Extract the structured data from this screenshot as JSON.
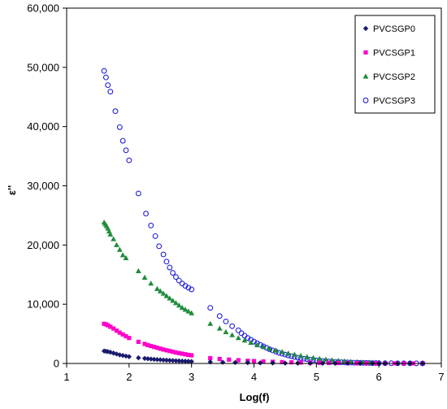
{
  "chart_data": {
    "type": "scatter",
    "title": "",
    "xlabel": "Log(f)",
    "ylabel": "ε''",
    "xlim": [
      1,
      7
    ],
    "ylim": [
      0,
      60000
    ],
    "xticks": [
      1,
      2,
      3,
      4,
      5,
      6,
      7
    ],
    "yticks": [
      0,
      10000,
      20000,
      30000,
      40000,
      50000,
      60000
    ],
    "xtick_labels": [
      "1",
      "2",
      "3",
      "4",
      "5",
      "6",
      "7"
    ],
    "ytick_labels": [
      "0",
      "10,000",
      "20,000",
      "30,000",
      "40,000",
      "50,000",
      "60,000"
    ],
    "grid": false,
    "legend_position": "top-right",
    "series": [
      {
        "name": "PVCSGP0",
        "marker": "diamond",
        "color": "#1a1a6e",
        "points": [
          [
            1.6,
            2100
          ],
          [
            1.63,
            2050
          ],
          [
            1.66,
            2000
          ],
          [
            1.7,
            1900
          ],
          [
            1.75,
            1750
          ],
          [
            1.8,
            1600
          ],
          [
            1.85,
            1450
          ],
          [
            1.9,
            1350
          ],
          [
            1.95,
            1250
          ],
          [
            2.0,
            1150
          ],
          [
            2.15,
            950
          ],
          [
            2.25,
            850
          ],
          [
            2.3,
            800
          ],
          [
            2.35,
            750
          ],
          [
            2.4,
            700
          ],
          [
            2.45,
            660
          ],
          [
            2.5,
            620
          ],
          [
            2.55,
            580
          ],
          [
            2.6,
            550
          ],
          [
            2.65,
            520
          ],
          [
            2.7,
            490
          ],
          [
            2.75,
            460
          ],
          [
            2.8,
            430
          ],
          [
            2.85,
            400
          ],
          [
            2.9,
            380
          ],
          [
            2.95,
            360
          ],
          [
            3.0,
            340
          ],
          [
            3.3,
            250
          ],
          [
            3.5,
            200
          ],
          [
            3.7,
            160
          ],
          [
            3.9,
            130
          ],
          [
            4.1,
            100
          ],
          [
            4.3,
            80
          ],
          [
            4.5,
            60
          ],
          [
            4.7,
            50
          ],
          [
            4.9,
            40
          ],
          [
            5.1,
            30
          ],
          [
            5.3,
            25
          ],
          [
            5.5,
            20
          ],
          [
            5.7,
            15
          ],
          [
            5.9,
            12
          ],
          [
            6.0,
            10
          ],
          [
            6.1,
            8
          ],
          [
            6.3,
            6
          ],
          [
            6.5,
            5
          ],
          [
            6.7,
            4
          ]
        ]
      },
      {
        "name": "PVCSGP1",
        "marker": "square",
        "color": "#ff00cc",
        "points": [
          [
            1.6,
            6700
          ],
          [
            1.63,
            6600
          ],
          [
            1.66,
            6450
          ],
          [
            1.7,
            6200
          ],
          [
            1.75,
            5900
          ],
          [
            1.8,
            5550
          ],
          [
            1.85,
            5200
          ],
          [
            1.9,
            4900
          ],
          [
            1.95,
            4600
          ],
          [
            2.0,
            4300
          ],
          [
            2.15,
            3650
          ],
          [
            2.25,
            3300
          ],
          [
            2.3,
            3100
          ],
          [
            2.35,
            2950
          ],
          [
            2.4,
            2800
          ],
          [
            2.45,
            2650
          ],
          [
            2.5,
            2500
          ],
          [
            2.55,
            2350
          ],
          [
            2.6,
            2220
          ],
          [
            2.65,
            2100
          ],
          [
            2.7,
            1980
          ],
          [
            2.75,
            1850
          ],
          [
            2.8,
            1750
          ],
          [
            2.85,
            1650
          ],
          [
            2.9,
            1550
          ],
          [
            2.95,
            1450
          ],
          [
            3.0,
            1380
          ],
          [
            3.3,
            900
          ],
          [
            3.45,
            750
          ],
          [
            3.6,
            650
          ],
          [
            3.75,
            550
          ],
          [
            3.9,
            450
          ],
          [
            4.0,
            400
          ],
          [
            4.15,
            330
          ],
          [
            4.3,
            280
          ],
          [
            4.45,
            230
          ],
          [
            4.6,
            190
          ],
          [
            4.75,
            160
          ],
          [
            4.9,
            130
          ],
          [
            5.05,
            110
          ],
          [
            5.2,
            90
          ],
          [
            5.35,
            75
          ],
          [
            5.5,
            60
          ],
          [
            5.65,
            50
          ],
          [
            5.8,
            40
          ],
          [
            5.95,
            30
          ],
          [
            6.1,
            25
          ],
          [
            6.25,
            20
          ],
          [
            6.4,
            15
          ],
          [
            6.55,
            12
          ],
          [
            6.7,
            10
          ]
        ]
      },
      {
        "name": "PVCSGP2",
        "marker": "triangle",
        "color": "#1e8c3a",
        "points": [
          [
            1.6,
            23800
          ],
          [
            1.62,
            23500
          ],
          [
            1.64,
            23200
          ],
          [
            1.66,
            22800
          ],
          [
            1.68,
            22300
          ],
          [
            1.7,
            21800
          ],
          [
            1.75,
            21000
          ],
          [
            1.8,
            20000
          ],
          [
            1.85,
            19200
          ],
          [
            1.9,
            18300
          ],
          [
            1.95,
            17800
          ],
          [
            2.15,
            15600
          ],
          [
            2.25,
            14500
          ],
          [
            2.35,
            13500
          ],
          [
            2.45,
            12600
          ],
          [
            2.5,
            12200
          ],
          [
            2.55,
            11800
          ],
          [
            2.6,
            11400
          ],
          [
            2.65,
            11000
          ],
          [
            2.7,
            10600
          ],
          [
            2.75,
            10200
          ],
          [
            2.8,
            9800
          ],
          [
            2.85,
            9400
          ],
          [
            2.9,
            9100
          ],
          [
            2.95,
            8800
          ],
          [
            3.0,
            8500
          ],
          [
            3.3,
            6700
          ],
          [
            3.45,
            5900
          ],
          [
            3.55,
            5300
          ],
          [
            3.65,
            4800
          ],
          [
            3.75,
            4300
          ],
          [
            3.85,
            3900
          ],
          [
            3.95,
            3500
          ],
          [
            4.05,
            3100
          ],
          [
            4.15,
            2800
          ],
          [
            4.25,
            2500
          ],
          [
            4.35,
            2200
          ],
          [
            4.45,
            1950
          ],
          [
            4.55,
            1700
          ],
          [
            4.65,
            1500
          ],
          [
            4.75,
            1300
          ],
          [
            4.85,
            1100
          ],
          [
            4.95,
            950
          ],
          [
            5.05,
            800
          ],
          [
            5.15,
            680
          ],
          [
            5.25,
            560
          ],
          [
            5.35,
            460
          ],
          [
            5.45,
            380
          ],
          [
            5.55,
            300
          ],
          [
            5.65,
            240
          ],
          [
            5.75,
            190
          ],
          [
            5.85,
            150
          ],
          [
            5.95,
            120
          ],
          [
            6.1,
            90
          ],
          [
            6.3,
            60
          ],
          [
            6.5,
            40
          ],
          [
            6.7,
            30
          ]
        ]
      },
      {
        "name": "PVCSGP3",
        "marker": "circle-open",
        "color": "#2222dd",
        "points": [
          [
            1.6,
            49400
          ],
          [
            1.63,
            48300
          ],
          [
            1.66,
            47000
          ],
          [
            1.7,
            45900
          ],
          [
            1.78,
            42600
          ],
          [
            1.85,
            39900
          ],
          [
            1.9,
            37600
          ],
          [
            1.95,
            36000
          ],
          [
            2.0,
            34300
          ],
          [
            2.15,
            28700
          ],
          [
            2.27,
            25300
          ],
          [
            2.35,
            23300
          ],
          [
            2.42,
            21500
          ],
          [
            2.48,
            19800
          ],
          [
            2.55,
            18400
          ],
          [
            2.6,
            17200
          ],
          [
            2.65,
            16200
          ],
          [
            2.7,
            15300
          ],
          [
            2.75,
            14600
          ],
          [
            2.8,
            14000
          ],
          [
            2.85,
            13500
          ],
          [
            2.9,
            13100
          ],
          [
            2.95,
            12800
          ],
          [
            3.0,
            12500
          ],
          [
            3.3,
            9400
          ],
          [
            3.45,
            8000
          ],
          [
            3.55,
            7100
          ],
          [
            3.65,
            6300
          ],
          [
            3.75,
            5600
          ],
          [
            3.8,
            5100
          ],
          [
            3.85,
            4700
          ],
          [
            3.9,
            4300
          ],
          [
            3.95,
            4000
          ],
          [
            4.0,
            3700
          ],
          [
            4.05,
            3400
          ],
          [
            4.1,
            3150
          ],
          [
            4.15,
            2900
          ],
          [
            4.2,
            2650
          ],
          [
            4.25,
            2400
          ],
          [
            4.3,
            2200
          ],
          [
            4.35,
            2000
          ],
          [
            4.4,
            1800
          ],
          [
            4.45,
            1650
          ],
          [
            4.5,
            1500
          ],
          [
            4.55,
            1350
          ],
          [
            4.6,
            1220
          ],
          [
            4.65,
            1100
          ],
          [
            4.7,
            990
          ],
          [
            4.75,
            890
          ],
          [
            4.8,
            800
          ],
          [
            4.85,
            720
          ],
          [
            4.9,
            650
          ],
          [
            4.95,
            580
          ],
          [
            5.0,
            520
          ],
          [
            5.05,
            470
          ],
          [
            5.1,
            420
          ],
          [
            5.15,
            380
          ],
          [
            5.2,
            340
          ],
          [
            5.25,
            300
          ],
          [
            5.3,
            270
          ],
          [
            5.35,
            240
          ],
          [
            5.4,
            215
          ],
          [
            5.45,
            190
          ],
          [
            5.5,
            170
          ],
          [
            5.55,
            150
          ],
          [
            5.6,
            135
          ],
          [
            5.65,
            120
          ],
          [
            5.7,
            105
          ],
          [
            5.75,
            95
          ],
          [
            5.8,
            85
          ],
          [
            5.85,
            75
          ],
          [
            5.9,
            65
          ],
          [
            5.95,
            58
          ],
          [
            6.0,
            50
          ],
          [
            6.1,
            42
          ],
          [
            6.2,
            36
          ],
          [
            6.3,
            30
          ],
          [
            6.4,
            25
          ],
          [
            6.5,
            20
          ],
          [
            6.6,
            17
          ],
          [
            6.7,
            15
          ]
        ]
      }
    ]
  }
}
